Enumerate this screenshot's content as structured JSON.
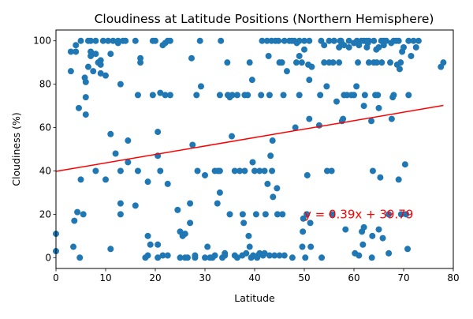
{
  "chart_data": {
    "type": "scatter",
    "title": "Cloudiness at Latitude Positions (Northern Hemisphere)",
    "xlabel": "Latitude",
    "ylabel": "Cloudiness (%)",
    "xlim": [
      0,
      80
    ],
    "ylim": [
      -5,
      105
    ],
    "xticks": [
      0,
      10,
      20,
      30,
      40,
      50,
      60,
      70,
      80
    ],
    "yticks": [
      0,
      20,
      40,
      60,
      80,
      100
    ],
    "grid": false,
    "colors": {
      "points": "#1f77b4",
      "regression": "#ff0000",
      "text": "#000000"
    },
    "regression": {
      "slope": 0.39,
      "intercept": 39.79,
      "x_range": [
        0,
        78
      ],
      "label": "y = 0.39x + 39.79",
      "label_position": [
        50,
        20
      ]
    },
    "points": [
      [
        0,
        3
      ],
      [
        0,
        11
      ],
      [
        3,
        86
      ],
      [
        3,
        95
      ],
      [
        3.5,
        5
      ],
      [
        3.7,
        17
      ],
      [
        4,
        98
      ],
      [
        4,
        95
      ],
      [
        4.3,
        21
      ],
      [
        4.6,
        69
      ],
      [
        4.8,
        0
      ],
      [
        5,
        36
      ],
      [
        5,
        100
      ],
      [
        5.5,
        20
      ],
      [
        5.8,
        83
      ],
      [
        6,
        81
      ],
      [
        6,
        66
      ],
      [
        6,
        74
      ],
      [
        6.5,
        88
      ],
      [
        6.5,
        100
      ],
      [
        7,
        95
      ],
      [
        7,
        93
      ],
      [
        7,
        100
      ],
      [
        7.5,
        86
      ],
      [
        8,
        40
      ],
      [
        8,
        100
      ],
      [
        8,
        94
      ],
      [
        8.5,
        90
      ],
      [
        9,
        89
      ],
      [
        9,
        91
      ],
      [
        9,
        85
      ],
      [
        9.5,
        100
      ],
      [
        10,
        84
      ],
      [
        10,
        36
      ],
      [
        10.5,
        100
      ],
      [
        11,
        94
      ],
      [
        11,
        57
      ],
      [
        11,
        4
      ],
      [
        11.5,
        100
      ],
      [
        12,
        48
      ],
      [
        12.5,
        99
      ],
      [
        12.5,
        100
      ],
      [
        13,
        80
      ],
      [
        13,
        40
      ],
      [
        13,
        20
      ],
      [
        13,
        25
      ],
      [
        13.5,
        100
      ],
      [
        14,
        100
      ],
      [
        14.5,
        44
      ],
      [
        14.5,
        54
      ],
      [
        16,
        24
      ],
      [
        16,
        100
      ],
      [
        16.5,
        40
      ],
      [
        16.5,
        75
      ],
      [
        17,
        92
      ],
      [
        17,
        90
      ],
      [
        18,
        0
      ],
      [
        18.5,
        1
      ],
      [
        18.5,
        35
      ],
      [
        18.5,
        10
      ],
      [
        19,
        6
      ],
      [
        19.5,
        100
      ],
      [
        19.5,
        75
      ],
      [
        20,
        100
      ],
      [
        20.5,
        47
      ],
      [
        20.5,
        58
      ],
      [
        20.5,
        6
      ],
      [
        20.5,
        0
      ],
      [
        21,
        40
      ],
      [
        21,
        76
      ],
      [
        21.5,
        98
      ],
      [
        21.5,
        1
      ],
      [
        22,
        99
      ],
      [
        22,
        75
      ],
      [
        22.5,
        100
      ],
      [
        22.5,
        34
      ],
      [
        22.5,
        1
      ],
      [
        23,
        75
      ],
      [
        23,
        100
      ],
      [
        24.5,
        22
      ],
      [
        25,
        12
      ],
      [
        25,
        0
      ],
      [
        25.5,
        10
      ],
      [
        26,
        11
      ],
      [
        26,
        0
      ],
      [
        26.5,
        0
      ],
      [
        27,
        25
      ],
      [
        27,
        16
      ],
      [
        27.3,
        92
      ],
      [
        27.5,
        52
      ],
      [
        28,
        0
      ],
      [
        28,
        1
      ],
      [
        28.3,
        75
      ],
      [
        28.5,
        40
      ],
      [
        29,
        100
      ],
      [
        29.2,
        79
      ],
      [
        30,
        0
      ],
      [
        30,
        38
      ],
      [
        30.5,
        5
      ],
      [
        31,
        0
      ],
      [
        31.5,
        0
      ],
      [
        32,
        40
      ],
      [
        32,
        1
      ],
      [
        32.5,
        25
      ],
      [
        32.6,
        40
      ],
      [
        33,
        30
      ],
      [
        33,
        40
      ],
      [
        33,
        75
      ],
      [
        33.2,
        100
      ],
      [
        33.5,
        0
      ],
      [
        34,
        2
      ],
      [
        34,
        1
      ],
      [
        34.5,
        90
      ],
      [
        34.6,
        75
      ],
      [
        35,
        20
      ],
      [
        35,
        74
      ],
      [
        35.4,
        56
      ],
      [
        35.5,
        75
      ],
      [
        36,
        40
      ],
      [
        36,
        1
      ],
      [
        36.5,
        75
      ],
      [
        36.5,
        0
      ],
      [
        37,
        40
      ],
      [
        37.5,
        1
      ],
      [
        37.6,
        20
      ],
      [
        37.8,
        16
      ],
      [
        38,
        75
      ],
      [
        38,
        40
      ],
      [
        38.3,
        2
      ],
      [
        38.6,
        75
      ],
      [
        38.8,
        10
      ],
      [
        39,
        5
      ],
      [
        39,
        90
      ],
      [
        39.3,
        0
      ],
      [
        39.5,
        82
      ],
      [
        39.6,
        44
      ],
      [
        39.7,
        1
      ],
      [
        40,
        40
      ],
      [
        40.3,
        20
      ],
      [
        40.5,
        0
      ],
      [
        40.7,
        1
      ],
      [
        41,
        40
      ],
      [
        41,
        2
      ],
      [
        41.3,
        75
      ],
      [
        41.5,
        100
      ],
      [
        41.7,
        1
      ],
      [
        42,
        40
      ],
      [
        42,
        2
      ],
      [
        42.2,
        20
      ],
      [
        42.5,
        100
      ],
      [
        42.6,
        34
      ],
      [
        42.8,
        93
      ],
      [
        43,
        75
      ],
      [
        43,
        1
      ],
      [
        43.2,
        47
      ],
      [
        43.4,
        100
      ],
      [
        43.5,
        40
      ],
      [
        43.6,
        54
      ],
      [
        43.7,
        28
      ],
      [
        44,
        1
      ],
      [
        44.2,
        100
      ],
      [
        44.5,
        32
      ],
      [
        44.6,
        20
      ],
      [
        44.8,
        100
      ],
      [
        45,
        1
      ],
      [
        45,
        90
      ],
      [
        45.5,
        90
      ],
      [
        45.6,
        20
      ],
      [
        45.8,
        75
      ],
      [
        46,
        100
      ],
      [
        46,
        1
      ],
      [
        46.5,
        86
      ],
      [
        47,
        100
      ],
      [
        47.5,
        100
      ],
      [
        47.6,
        0
      ],
      [
        48,
        100
      ],
      [
        48.2,
        60
      ],
      [
        48.4,
        90
      ],
      [
        48.5,
        99
      ],
      [
        49,
        75
      ],
      [
        49,
        93
      ],
      [
        49,
        100
      ],
      [
        49.5,
        90
      ],
      [
        49.6,
        5
      ],
      [
        49.7,
        12
      ],
      [
        49.8,
        18
      ],
      [
        50,
        100
      ],
      [
        50,
        96
      ],
      [
        50.2,
        0
      ],
      [
        50.5,
        20
      ],
      [
        50.6,
        38
      ],
      [
        50.8,
        89
      ],
      [
        51,
        100
      ],
      [
        51,
        82
      ],
      [
        51,
        64
      ],
      [
        51.2,
        16
      ],
      [
        51.3,
        5
      ],
      [
        51.5,
        88
      ],
      [
        53,
        61
      ],
      [
        53.2,
        75
      ],
      [
        53.4,
        100
      ],
      [
        53.5,
        0
      ],
      [
        54,
        98
      ],
      [
        54,
        90
      ],
      [
        54.5,
        79
      ],
      [
        54.6,
        40
      ],
      [
        55,
        90
      ],
      [
        55,
        100
      ],
      [
        55.5,
        40
      ],
      [
        55.6,
        20
      ],
      [
        55.8,
        90
      ],
      [
        56,
        100
      ],
      [
        56,
        100
      ],
      [
        56.5,
        72
      ],
      [
        57,
        97
      ],
      [
        57,
        90
      ],
      [
        57.2,
        100
      ],
      [
        57.4,
        100
      ],
      [
        57.5,
        99
      ],
      [
        57.6,
        63
      ],
      [
        57.8,
        64
      ],
      [
        58,
        75
      ],
      [
        58,
        98
      ],
      [
        58.3,
        13
      ],
      [
        58.6,
        75
      ],
      [
        59,
        97
      ],
      [
        59,
        100
      ],
      [
        59.5,
        75
      ],
      [
        60,
        75
      ],
      [
        60,
        99
      ],
      [
        60.2,
        2
      ],
      [
        60.5,
        79
      ],
      [
        60.6,
        100
      ],
      [
        60.8,
        90
      ],
      [
        61,
        98
      ],
      [
        61,
        1
      ],
      [
        61.5,
        100
      ],
      [
        61.6,
        12
      ],
      [
        61.8,
        6
      ],
      [
        62,
        100
      ],
      [
        62,
        14
      ],
      [
        62,
        70
      ],
      [
        62.2,
        75
      ],
      [
        62.5,
        100
      ],
      [
        62.6,
        97
      ],
      [
        62.8,
        99
      ],
      [
        63,
        90
      ],
      [
        63,
        100
      ],
      [
        63.5,
        63
      ],
      [
        63.6,
        0
      ],
      [
        63.7,
        10
      ],
      [
        63.8,
        40
      ],
      [
        64,
        100
      ],
      [
        64,
        90
      ],
      [
        64.3,
        75
      ],
      [
        64.5,
        96
      ],
      [
        64.6,
        90
      ],
      [
        64.8,
        75
      ],
      [
        65,
        97
      ],
      [
        65,
        13
      ],
      [
        65,
        69
      ],
      [
        65.3,
        37
      ],
      [
        65.5,
        100
      ],
      [
        65.6,
        90
      ],
      [
        65.8,
        9
      ],
      [
        66,
        100
      ],
      [
        66,
        98
      ],
      [
        66.5,
        100
      ],
      [
        67,
        20
      ],
      [
        67,
        2
      ],
      [
        67.3,
        90
      ],
      [
        67.5,
        99
      ],
      [
        67.6,
        64
      ],
      [
        67.8,
        74
      ],
      [
        68,
        75
      ],
      [
        68,
        100
      ],
      [
        68.5,
        100
      ],
      [
        68.7,
        89
      ],
      [
        69,
        36
      ],
      [
        69,
        100
      ],
      [
        69.2,
        87
      ],
      [
        69.4,
        90
      ],
      [
        69.5,
        20
      ],
      [
        69.7,
        95
      ],
      [
        70,
        97
      ],
      [
        70.3,
        43
      ],
      [
        70.5,
        20
      ],
      [
        70.8,
        4
      ],
      [
        71,
        75
      ],
      [
        71,
        100
      ],
      [
        71.5,
        93
      ],
      [
        72,
        100
      ],
      [
        72.5,
        97
      ],
      [
        73,
        100
      ],
      [
        77.5,
        88
      ],
      [
        78,
        90
      ]
    ]
  }
}
